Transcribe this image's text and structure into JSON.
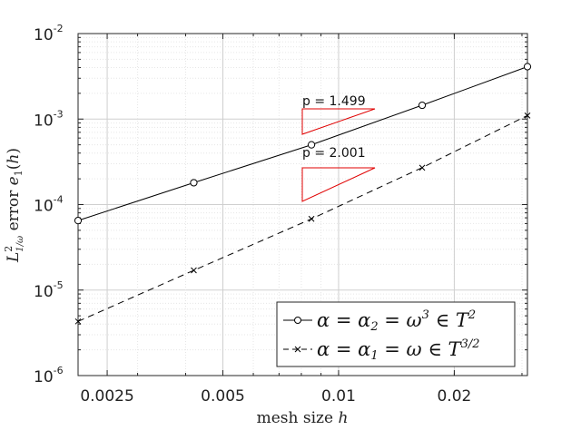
{
  "chart_data": {
    "type": "line",
    "xscale": "log",
    "yscale": "log",
    "xlim": [
      0.0021,
      0.031
    ],
    "ylim": [
      1e-06,
      0.01
    ],
    "grid": true,
    "legend_position": "bottom-right",
    "xlabel": "mesh size h",
    "ylabel": "L²_{1/ω} error e₁(h)",
    "x_ticks": [
      {
        "value": 0.0025,
        "label": "0.0025"
      },
      {
        "value": 0.005,
        "label": "0.005"
      },
      {
        "value": 0.01,
        "label": "0.01"
      },
      {
        "value": 0.02,
        "label": "0.02"
      }
    ],
    "y_ticks": [
      {
        "value": 0.01,
        "mant": "10",
        "exp": "-2"
      },
      {
        "value": 0.001,
        "mant": "10",
        "exp": "-3"
      },
      {
        "value": 0.0001,
        "mant": "10",
        "exp": "-4"
      },
      {
        "value": 1e-05,
        "mant": "10",
        "exp": "-5"
      },
      {
        "value": 1e-06,
        "mant": "10",
        "exp": "-6"
      }
    ],
    "series": [
      {
        "name": "α = α₂ = ω³ ∈ T²",
        "line": "solid",
        "marker": "circle",
        "color": "#000000",
        "x": [
          0.0021,
          0.0042,
          0.0085,
          0.0165,
          0.031
        ],
        "y": [
          6.5e-05,
          0.00018,
          0.0005,
          0.00145,
          0.0041
        ]
      },
      {
        "name": "α = α₁ = ω ∈ T^{3/2}",
        "line": "dashed",
        "marker": "x",
        "color": "#000000",
        "x": [
          0.0021,
          0.0042,
          0.0085,
          0.0165,
          0.031
        ],
        "y": [
          4.3e-06,
          1.7e-05,
          6.8e-05,
          0.00027,
          0.0011
        ]
      }
    ],
    "annotations": [
      {
        "text": "p = 1.499",
        "color": "#e00000"
      },
      {
        "text": "p = 2.001",
        "color": "#e00000"
      }
    ]
  }
}
